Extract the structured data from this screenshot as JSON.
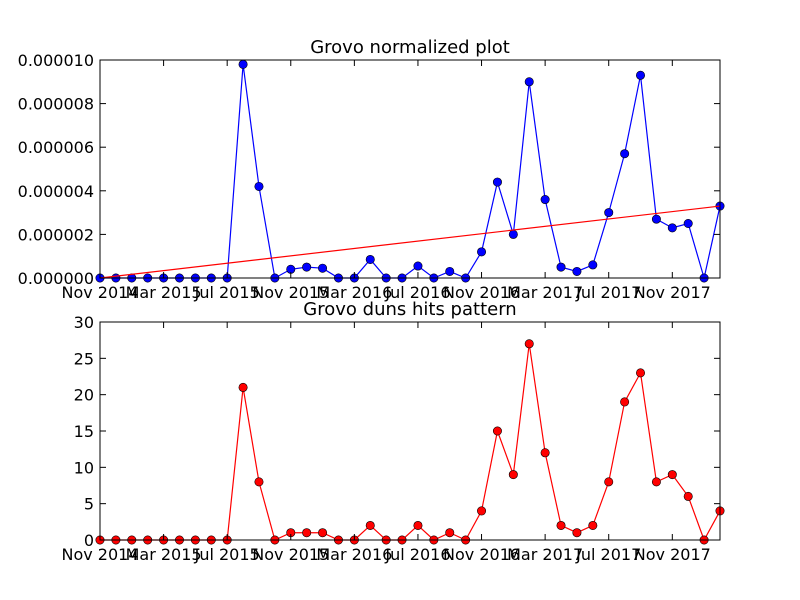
{
  "chart_data": [
    {
      "type": "line",
      "title": "Grovo normalized plot",
      "xlabel": "",
      "ylabel": "",
      "x_ticks": [
        "Nov 2014",
        "Mar 2015",
        "Jul 2015",
        "Nov 2015",
        "Mar 2016",
        "Jul 2016",
        "Nov 2016",
        "Mar 2017",
        "Jul 2017",
        "Nov 2017"
      ],
      "y_ticks": [
        "0.000000",
        "0.000002",
        "0.000004",
        "0.000006",
        "0.000008",
        "0.000010"
      ],
      "xlim": [
        "2014-11",
        "2018-02"
      ],
      "ylim": [
        0,
        1e-05
      ],
      "grid": false,
      "series": [
        {
          "color": "#0000ff",
          "marker_color": "#0000ff",
          "x": [
            "2014-11",
            "2014-12",
            "2015-01",
            "2015-02",
            "2015-03",
            "2015-04",
            "2015-05",
            "2015-06",
            "2015-07",
            "2015-08",
            "2015-09",
            "2015-10",
            "2015-11",
            "2015-12",
            "2016-01",
            "2016-02",
            "2016-03",
            "2016-04",
            "2016-05",
            "2016-06",
            "2016-07",
            "2016-08",
            "2016-09",
            "2016-10",
            "2016-11",
            "2016-12",
            "2017-01",
            "2017-02",
            "2017-03",
            "2017-04",
            "2017-05",
            "2017-06",
            "2017-07",
            "2017-08",
            "2017-09",
            "2017-10",
            "2017-11",
            "2017-12",
            "2018-01",
            "2018-02"
          ],
          "values": [
            0,
            0,
            0,
            0,
            0,
            0,
            0,
            0,
            0,
            9.8e-06,
            4.2e-06,
            0,
            4e-07,
            5e-07,
            4.5e-07,
            0,
            0,
            8.5e-07,
            0,
            0,
            5.5e-07,
            0,
            3e-07,
            0,
            1.2e-06,
            4.4e-06,
            2e-06,
            9e-06,
            3.6e-06,
            5e-07,
            3e-07,
            6e-07,
            3e-06,
            5.7e-06,
            9.3e-06,
            2.7e-06,
            2.3e-06,
            2.5e-06,
            0,
            3.3e-06
          ]
        },
        {
          "color": "#ff0000",
          "marker": "none",
          "x": [
            "2014-11",
            "2018-02"
          ],
          "values": [
            0,
            3.3e-06
          ]
        }
      ]
    },
    {
      "type": "line",
      "title": "Grovo duns hits pattern",
      "xlabel": "",
      "ylabel": "",
      "x_ticks": [
        "Nov 2014",
        "Mar 2015",
        "Jul 2015",
        "Nov 2015",
        "Mar 2016",
        "Jul 2016",
        "Nov 2016",
        "Mar 2017",
        "Jul 2017",
        "Nov 2017"
      ],
      "y_ticks": [
        "0",
        "5",
        "10",
        "15",
        "20",
        "25",
        "30"
      ],
      "xlim": [
        "2014-11",
        "2018-02"
      ],
      "ylim": [
        0,
        30
      ],
      "grid": false,
      "series": [
        {
          "color": "#ff0000",
          "marker_color": "#ff0000",
          "x": [
            "2014-11",
            "2014-12",
            "2015-01",
            "2015-02",
            "2015-03",
            "2015-04",
            "2015-05",
            "2015-06",
            "2015-07",
            "2015-08",
            "2015-09",
            "2015-10",
            "2015-11",
            "2015-12",
            "2016-01",
            "2016-02",
            "2016-03",
            "2016-04",
            "2016-05",
            "2016-06",
            "2016-07",
            "2016-08",
            "2016-09",
            "2016-10",
            "2016-11",
            "2016-12",
            "2017-01",
            "2017-02",
            "2017-03",
            "2017-04",
            "2017-05",
            "2017-06",
            "2017-07",
            "2017-08",
            "2017-09",
            "2017-10",
            "2017-11",
            "2017-12",
            "2018-01",
            "2018-02"
          ],
          "values": [
            0,
            0,
            0,
            0,
            0,
            0,
            0,
            0,
            0,
            21,
            8,
            0,
            1,
            1,
            1,
            0,
            0,
            2,
            0,
            0,
            2,
            0,
            1,
            0,
            4,
            15,
            9,
            27,
            12,
            2,
            1,
            2,
            8,
            19,
            23,
            8,
            9,
            6,
            0,
            4
          ]
        }
      ]
    }
  ]
}
